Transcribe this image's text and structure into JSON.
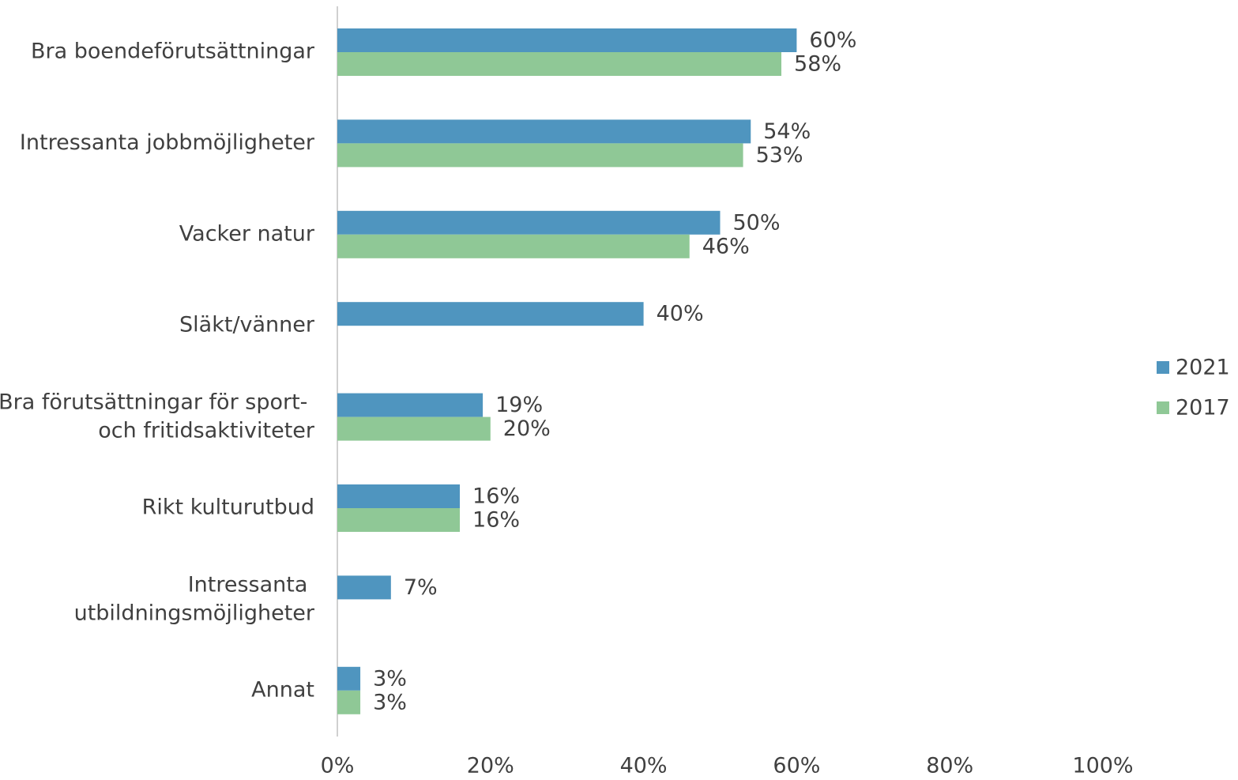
{
  "chart_data": {
    "type": "bar",
    "orientation": "horizontal",
    "categories": [
      "Bra boendeförutsättningar",
      "Intressanta jobbmöjligheter",
      "Vacker natur",
      "Släkt/vänner",
      "Bra förutsättningar för sport-\noch fritidsaktiviteter",
      "Rikt kulturutbud",
      "Intressanta\nutbildningsmöjligheter",
      "Annat"
    ],
    "series": [
      {
        "name": "2021",
        "color": "#4f95bf",
        "values": [
          60,
          54,
          50,
          40,
          19,
          16,
          7,
          3
        ],
        "value_labels": [
          "60%",
          "54%",
          "50%",
          "40%",
          "19%",
          "16%",
          "7%",
          "3%"
        ]
      },
      {
        "name": "2017",
        "color": "#8fc896",
        "values": [
          58,
          53,
          46,
          null,
          20,
          16,
          null,
          3
        ],
        "value_labels": [
          "58%",
          "53%",
          "46%",
          null,
          "20%",
          "16%",
          null,
          "3%"
        ]
      }
    ],
    "xlim": [
      0,
      100
    ],
    "xticks": [
      {
        "value": 0,
        "label": "0%"
      },
      {
        "value": 20,
        "label": "20%"
      },
      {
        "value": 40,
        "label": "40%"
      },
      {
        "value": 60,
        "label": "60%"
      },
      {
        "value": 80,
        "label": "80%"
      },
      {
        "value": 100,
        "label": "100%"
      }
    ],
    "legend": "right"
  }
}
